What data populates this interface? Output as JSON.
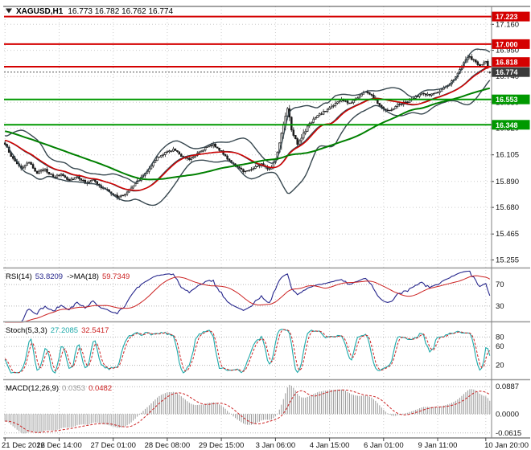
{
  "title": {
    "symbol": "XAGUSD,H1",
    "ohlc": "16.773 16.782 16.762 16.774"
  },
  "price_axis": {
    "labels": [
      "17.160",
      "16.950",
      "16.740",
      "16.530",
      "16.320",
      "16.105",
      "15.890",
      "15.680",
      "15.465",
      "15.255"
    ]
  },
  "time_axis": {
    "labels": [
      "21 Dec 2016",
      "22 Dec 14:00",
      "27 Dec 01:00",
      "28 Dec 08:00",
      "29 Dec 15:00",
      "3 Jan 06:00",
      "4 Jan 15:00",
      "6 Jan 01:00",
      "9 Jan 11:00",
      "10 Jan 20:00"
    ],
    "bars": [
      0,
      27,
      54,
      81,
      108,
      135,
      162,
      189,
      216,
      240
    ]
  },
  "main_panel": {
    "horizontal_lines": [
      {
        "price": 17.223,
        "label": "17.223",
        "color": "#d40000",
        "kind": "resistance"
      },
      {
        "price": 17.0,
        "label": "17.000",
        "color": "#d40000",
        "kind": "resistance"
      },
      {
        "price": 16.818,
        "label": "16.818",
        "color": "#d40000",
        "kind": "resistance"
      },
      {
        "price": 16.553,
        "label": "16.553",
        "color": "#009900",
        "kind": "support"
      },
      {
        "price": 16.348,
        "label": "16.348",
        "color": "#009900",
        "kind": "support"
      }
    ],
    "current_price": {
      "price": 16.774,
      "label": "16.774",
      "box_color": "#3a3a3a"
    }
  },
  "indicators": {
    "rsi": {
      "name": "RSI(14)",
      "value": "53.8209",
      "ma_name": "->MA(18)",
      "ma_value": "59.7349",
      "levels": [
        "70",
        "30"
      ],
      "line_color": "#26268c",
      "ma_color": "#cc2222"
    },
    "stoch": {
      "name": "Stoch(5,3,3)",
      "k": "27.2085",
      "d": "32.5417",
      "levels": [
        "80",
        "60",
        "20"
      ],
      "k_color": "#1ca9a9",
      "d_color": "#cc2222"
    },
    "macd": {
      "name": "MACD(12,26,9)",
      "value": "0.0353",
      "signal": "0.0482",
      "levels": [
        "0.0887",
        "0.0000",
        "-0.0615"
      ],
      "main_color": "#9a9a9a",
      "signal_color": "#cc2222"
    }
  },
  "chart_data": {
    "type": "candlestick",
    "symbol": "XAGUSD",
    "timeframe": "H1",
    "title": "XAGUSD,H1",
    "bars": 243,
    "price_range": [
      15.2,
      17.305
    ],
    "x_labels": [
      "21 Dec 2016",
      "22 Dec 14:00",
      "27 Dec 01:00",
      "28 Dec 08:00",
      "29 Dec 15:00",
      "3 Jan 06:00",
      "4 Jan 15:00",
      "6 Jan 01:00",
      "9 Jan 11:00",
      "10 Jan 20:00"
    ],
    "y_labels": [
      17.16,
      16.95,
      16.74,
      16.53,
      16.32,
      16.105,
      15.89,
      15.68,
      15.465,
      15.255
    ],
    "close_waypoints": [
      [
        0,
        16.19,
        1
      ],
      [
        4,
        16.07,
        1
      ],
      [
        8,
        16.0,
        1.2
      ],
      [
        12,
        16.04,
        1
      ],
      [
        16,
        15.96,
        1
      ],
      [
        20,
        15.99,
        1
      ],
      [
        24,
        15.92,
        1
      ],
      [
        28,
        15.95,
        1
      ],
      [
        32,
        15.9,
        1
      ],
      [
        36,
        15.93,
        1
      ],
      [
        40,
        15.88,
        1
      ],
      [
        44,
        15.9,
        1
      ],
      [
        48,
        15.84,
        1
      ],
      [
        52,
        15.81,
        1
      ],
      [
        56,
        15.76,
        1.3
      ],
      [
        60,
        15.79,
        1
      ],
      [
        64,
        15.86,
        1
      ],
      [
        68,
        15.92,
        1
      ],
      [
        72,
        16.0,
        1.2
      ],
      [
        76,
        16.08,
        1
      ],
      [
        80,
        16.12,
        1
      ],
      [
        84,
        16.15,
        1
      ],
      [
        88,
        16.1,
        1
      ],
      [
        92,
        16.07,
        1
      ],
      [
        96,
        16.12,
        1
      ],
      [
        100,
        16.16,
        1
      ],
      [
        104,
        16.19,
        1
      ],
      [
        108,
        16.13,
        1
      ],
      [
        112,
        16.06,
        1
      ],
      [
        116,
        16.0,
        1
      ],
      [
        120,
        15.97,
        1.2
      ],
      [
        124,
        16.0,
        1
      ],
      [
        128,
        16.03,
        1
      ],
      [
        132,
        15.99,
        1
      ],
      [
        135,
        16.06,
        1.5
      ],
      [
        138,
        16.28,
        3
      ],
      [
        141,
        16.5,
        3
      ],
      [
        143,
        16.32,
        2.5
      ],
      [
        146,
        16.2,
        2
      ],
      [
        149,
        16.27,
        1.5
      ],
      [
        152,
        16.36,
        1
      ],
      [
        156,
        16.42,
        1
      ],
      [
        160,
        16.46,
        1
      ],
      [
        164,
        16.51,
        1
      ],
      [
        168,
        16.55,
        1
      ],
      [
        172,
        16.52,
        1
      ],
      [
        176,
        16.57,
        1
      ],
      [
        180,
        16.62,
        1
      ],
      [
        184,
        16.57,
        1
      ],
      [
        188,
        16.49,
        1
      ],
      [
        192,
        16.46,
        1.2
      ],
      [
        196,
        16.51,
        1
      ],
      [
        200,
        16.53,
        1
      ],
      [
        204,
        16.56,
        1
      ],
      [
        208,
        16.6,
        1
      ],
      [
        212,
        16.59,
        1
      ],
      [
        216,
        16.61,
        1
      ],
      [
        220,
        16.65,
        1
      ],
      [
        224,
        16.72,
        1.2
      ],
      [
        228,
        16.81,
        1.3
      ],
      [
        231,
        16.9,
        1.5
      ],
      [
        234,
        16.87,
        1
      ],
      [
        237,
        16.82,
        1
      ],
      [
        240,
        16.86,
        1
      ],
      [
        242,
        16.774,
        1
      ]
    ],
    "last_ohlc": {
      "open": 16.773,
      "high": 16.782,
      "low": 16.762,
      "close": 16.774
    },
    "overlays": {
      "bollinger": {
        "period": 20,
        "deviation": 2,
        "color": "#37474f"
      },
      "ma_fast": {
        "period": 21,
        "color": "#d40000"
      },
      "ma_slow": {
        "period": 66,
        "color": "#008000"
      }
    },
    "levels": {
      "resistance": [
        17.223,
        17.0,
        16.818
      ],
      "support": [
        16.553,
        16.348
      ],
      "current": 16.774
    },
    "indicator_values": {
      "rsi": {
        "value": 53.8209,
        "ma": 59.7349,
        "levels": [
          70,
          30
        ]
      },
      "stoch": {
        "k": 27.2085,
        "d": 32.5417,
        "levels": [
          80,
          60,
          20
        ]
      },
      "macd": {
        "main": 0.0353,
        "signal": 0.0482,
        "axis": [
          0.0887,
          0.0,
          -0.0615
        ]
      }
    }
  }
}
